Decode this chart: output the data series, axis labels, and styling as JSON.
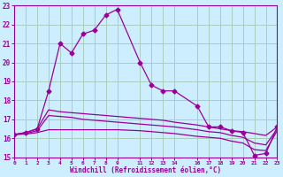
{
  "background_color": "#cceeff",
  "grid_color": "#aaccbb",
  "line_color": "#990099",
  "xlabel": "Windchill (Refroidissement éolien,°C)",
  "xlim": [
    0,
    23
  ],
  "ylim": [
    15,
    23
  ],
  "yticks": [
    15,
    16,
    17,
    18,
    19,
    20,
    21,
    22,
    23
  ],
  "xtick_positions": [
    0,
    1,
    2,
    3,
    4,
    5,
    6,
    7,
    8,
    9,
    11,
    12,
    13,
    14,
    16,
    17,
    18,
    19,
    20,
    21,
    22,
    23
  ],
  "xtick_labels": [
    "0",
    "1",
    "2",
    "3",
    "4",
    "5",
    "6",
    "7",
    "8",
    "9",
    "11",
    "12",
    "13",
    "14",
    "16",
    "17",
    "18",
    "19",
    "20",
    "21",
    "22",
    "23"
  ],
  "series": [
    {
      "x": [
        0,
        1,
        2,
        3,
        4,
        5,
        6,
        7,
        8,
        9,
        11,
        12,
        13,
        14,
        16,
        17,
        18,
        19,
        20,
        21,
        22,
        23
      ],
      "y": [
        16.2,
        16.3,
        16.5,
        18.5,
        21.0,
        20.5,
        21.5,
        21.7,
        22.5,
        22.8,
        20.0,
        18.8,
        18.5,
        18.5,
        17.7,
        16.6,
        16.6,
        16.4,
        16.3,
        15.1,
        15.2,
        16.6
      ],
      "marker": "D",
      "markersize": 2.5,
      "linewidth": 0.9
    },
    {
      "x": [
        0,
        1,
        2,
        3,
        4,
        5,
        6,
        7,
        8,
        9,
        11,
        12,
        13,
        14,
        16,
        17,
        18,
        19,
        20,
        21,
        22,
        23
      ],
      "y": [
        16.2,
        16.3,
        16.5,
        17.5,
        17.4,
        17.35,
        17.3,
        17.25,
        17.2,
        17.15,
        17.05,
        17.0,
        16.95,
        16.85,
        16.7,
        16.6,
        16.5,
        16.4,
        16.35,
        16.25,
        16.15,
        16.6
      ],
      "marker": null,
      "markersize": 0,
      "linewidth": 0.9
    },
    {
      "x": [
        0,
        1,
        2,
        3,
        4,
        5,
        6,
        7,
        8,
        9,
        11,
        12,
        13,
        14,
        16,
        17,
        18,
        19,
        20,
        21,
        22,
        23
      ],
      "y": [
        16.2,
        16.25,
        16.4,
        17.2,
        17.15,
        17.1,
        17.0,
        16.95,
        16.9,
        16.85,
        16.75,
        16.7,
        16.65,
        16.6,
        16.45,
        16.35,
        16.3,
        16.15,
        16.05,
        15.75,
        15.65,
        16.5
      ],
      "marker": null,
      "markersize": 0,
      "linewidth": 0.9
    },
    {
      "x": [
        0,
        1,
        2,
        3,
        4,
        5,
        6,
        7,
        8,
        9,
        11,
        12,
        13,
        14,
        16,
        17,
        18,
        19,
        20,
        21,
        22,
        23
      ],
      "y": [
        16.2,
        16.22,
        16.3,
        16.45,
        16.45,
        16.45,
        16.45,
        16.45,
        16.45,
        16.45,
        16.4,
        16.35,
        16.3,
        16.25,
        16.1,
        16.05,
        16.0,
        15.85,
        15.75,
        15.4,
        15.35,
        16.4
      ],
      "marker": null,
      "markersize": 0,
      "linewidth": 0.9
    }
  ]
}
